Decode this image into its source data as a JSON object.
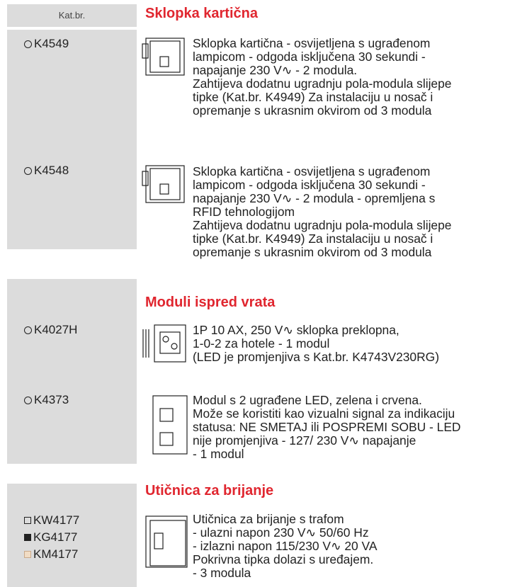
{
  "header": {
    "kat_label": "Kat.br."
  },
  "sections": [
    {
      "title": "Sklopka kartična",
      "items": [
        {
          "codes": [
            "K4549"
          ],
          "description": [
            "Sklopka kartična - osvijetljena s ugrađenom",
            "lampicom - odgoda isključena 30 sekundi -",
            "napajanje 230 V∿ - 2 modula.",
            "Zahtijeva dodatnu ugradnju pola-modula slijepe",
            "tipke (Kat.br. K4949) Za instalaciju u nosač i",
            "opremanje s ukrasnim okvirom od 3 modula"
          ]
        },
        {
          "codes": [
            "K4548"
          ],
          "description": [
            "Sklopka kartična - osvijetljena s ugrađenom",
            "lampicom - odgoda isključena 30 sekundi -",
            "napajanje 230 V∿ - 2 modula - opremljena s",
            "RFID tehnologijom",
            "Zahtijeva dodatnu ugradnju pola-modula slijepe",
            "tipke (Kat.br. K4949) Za instalaciju u nosač i",
            "opremanje s ukrasnim okvirom od 3 modula"
          ]
        }
      ]
    },
    {
      "title": "Moduli ispred vrata",
      "items": [
        {
          "codes": [
            "K4027H"
          ],
          "description": [
            "1P 10 AX, 250 V∿ sklopka preklopna,",
            "1-0-2 za hotele - 1 modul",
            "(LED je promjenjiva s Kat.br. K4743V230RG)"
          ]
        },
        {
          "codes": [
            "K4373"
          ],
          "description": [
            "Modul s 2 ugrađene LED, zelena i crvena.",
            "Može se koristiti kao vizualni signal za indikaciju",
            "statusa: NE SMETAJ ili POSPREMI SOBU - LED",
            "nije promjenjiva - 127/ 230 V∿ napajanje",
            "- 1 modul"
          ]
        }
      ]
    },
    {
      "title": "Utičnica za brijanje",
      "items": [
        {
          "codes": [
            "KW4177",
            "KG4177",
            "KM4177"
          ],
          "description": [
            "Utičnica za brijanje s trafom",
            "- ulazni napon 230 V∿ 50/60 Hz",
            "- izlazni napon 115/230 V∿ 20  VA",
            "Pokrivna tipka dolazi s uređajem.",
            "- 3 modula"
          ]
        }
      ]
    }
  ]
}
